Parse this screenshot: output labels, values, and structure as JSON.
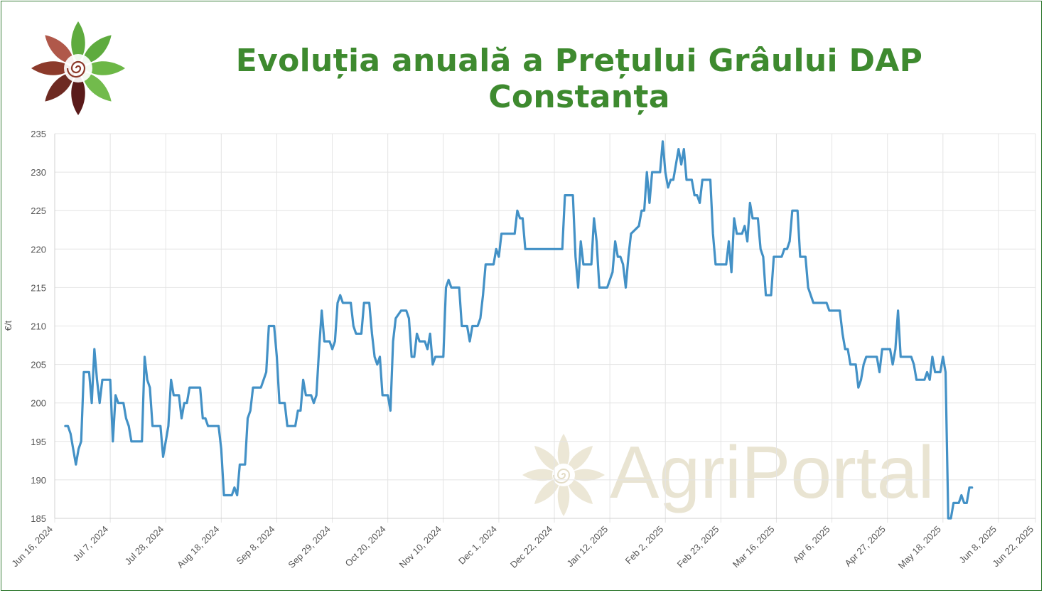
{
  "title": "Evoluția anuală a Prețului Grâului DAP Constanța",
  "brand": {
    "logo_icon": "agriportal-flower-logo",
    "watermark": "AgriPortal"
  },
  "colors": {
    "line": "#4391c6",
    "title": "#3e8a2f",
    "grid": "#e4e4e4",
    "watermark": "#e9e4d2"
  },
  "chart_data": {
    "type": "line",
    "title": "Evoluția anuală a Prețului Grâului DAP Constanța",
    "xlabel": "",
    "ylabel": "€/t",
    "ylim": [
      185,
      235
    ],
    "yticks": [
      "235",
      "230",
      "225",
      "220",
      "215",
      "210",
      "205",
      "200",
      "195",
      "190",
      "185"
    ],
    "xlim": [
      "2024-06-16",
      "2025-06-22"
    ],
    "xticks": [
      "Jun 16, 2024",
      "Jul 7, 2024",
      "Jul 28, 2024",
      "Aug 18, 2024",
      "Sep 8, 2024",
      "Sep 29, 2024",
      "Oct 20, 2024",
      "Nov 10, 2024",
      "Dec 1, 2024",
      "Dec 22, 2024",
      "Jan 12, 2025",
      "Feb 2, 2025",
      "Feb 23, 2025",
      "Mar 16, 2025",
      "Apr 6, 2025",
      "Apr 27, 2025",
      "May 18, 2025",
      "Jun 8, 2025",
      "Jun 22, 2025"
    ],
    "grid": true,
    "series": [
      {
        "name": "",
        "points": [
          [
            "2024-06-20",
            197
          ],
          [
            "2024-06-21",
            197
          ],
          [
            "2024-06-22",
            196
          ],
          [
            "2024-06-23",
            194
          ],
          [
            "2024-06-24",
            192
          ],
          [
            "2024-06-25",
            194
          ],
          [
            "2024-06-26",
            195
          ],
          [
            "2024-06-27",
            204
          ],
          [
            "2024-06-28",
            204
          ],
          [
            "2024-06-29",
            204
          ],
          [
            "2024-06-30",
            200
          ],
          [
            "2024-07-01",
            207
          ],
          [
            "2024-07-02",
            203
          ],
          [
            "2024-07-03",
            200
          ],
          [
            "2024-07-04",
            203
          ],
          [
            "2024-07-05",
            203
          ],
          [
            "2024-07-07",
            203
          ],
          [
            "2024-07-08",
            195
          ],
          [
            "2024-07-09",
            201
          ],
          [
            "2024-07-10",
            200
          ],
          [
            "2024-07-12",
            200
          ],
          [
            "2024-07-13",
            198
          ],
          [
            "2024-07-14",
            197
          ],
          [
            "2024-07-15",
            195
          ],
          [
            "2024-07-18",
            195
          ],
          [
            "2024-07-19",
            195
          ],
          [
            "2024-07-20",
            206
          ],
          [
            "2024-07-21",
            203
          ],
          [
            "2024-07-22",
            202
          ],
          [
            "2024-07-23",
            197
          ],
          [
            "2024-07-25",
            197
          ],
          [
            "2024-07-26",
            197
          ],
          [
            "2024-07-27",
            193
          ],
          [
            "2024-07-29",
            197
          ],
          [
            "2024-07-30",
            203
          ],
          [
            "2024-07-31",
            201
          ],
          [
            "2024-08-02",
            201
          ],
          [
            "2024-08-03",
            198
          ],
          [
            "2024-08-04",
            200
          ],
          [
            "2024-08-05",
            200
          ],
          [
            "2024-08-06",
            202
          ],
          [
            "2024-08-09",
            202
          ],
          [
            "2024-08-10",
            202
          ],
          [
            "2024-08-11",
            198
          ],
          [
            "2024-08-12",
            198
          ],
          [
            "2024-08-13",
            197
          ],
          [
            "2024-08-16",
            197
          ],
          [
            "2024-08-17",
            197
          ],
          [
            "2024-08-18",
            194
          ],
          [
            "2024-08-19",
            188
          ],
          [
            "2024-08-22",
            188
          ],
          [
            "2024-08-23",
            189
          ],
          [
            "2024-08-24",
            188
          ],
          [
            "2024-08-25",
            192
          ],
          [
            "2024-08-27",
            192
          ],
          [
            "2024-08-28",
            198
          ],
          [
            "2024-08-29",
            199
          ],
          [
            "2024-08-30",
            202
          ],
          [
            "2024-09-02",
            202
          ],
          [
            "2024-09-03",
            203
          ],
          [
            "2024-09-04",
            204
          ],
          [
            "2024-09-05",
            210
          ],
          [
            "2024-09-07",
            210
          ],
          [
            "2024-09-08",
            206
          ],
          [
            "2024-09-09",
            200
          ],
          [
            "2024-09-10",
            200
          ],
          [
            "2024-09-11",
            200
          ],
          [
            "2024-09-12",
            197
          ],
          [
            "2024-09-15",
            197
          ],
          [
            "2024-09-16",
            199
          ],
          [
            "2024-09-17",
            199
          ],
          [
            "2024-09-18",
            203
          ],
          [
            "2024-09-19",
            201
          ],
          [
            "2024-09-21",
            201
          ],
          [
            "2024-09-22",
            200
          ],
          [
            "2024-09-23",
            201
          ],
          [
            "2024-09-24",
            207
          ],
          [
            "2024-09-25",
            212
          ],
          [
            "2024-09-26",
            208
          ],
          [
            "2024-09-28",
            208
          ],
          [
            "2024-09-29",
            207
          ],
          [
            "2024-09-30",
            208
          ],
          [
            "2024-10-01",
            213
          ],
          [
            "2024-10-02",
            214
          ],
          [
            "2024-10-03",
            213
          ],
          [
            "2024-10-06",
            213
          ],
          [
            "2024-10-07",
            210
          ],
          [
            "2024-10-08",
            209
          ],
          [
            "2024-10-10",
            209
          ],
          [
            "2024-10-11",
            213
          ],
          [
            "2024-10-13",
            213
          ],
          [
            "2024-10-14",
            209
          ],
          [
            "2024-10-15",
            206
          ],
          [
            "2024-10-16",
            205
          ],
          [
            "2024-10-17",
            206
          ],
          [
            "2024-10-18",
            201
          ],
          [
            "2024-10-20",
            201
          ],
          [
            "2024-10-21",
            199
          ],
          [
            "2024-10-22",
            208
          ],
          [
            "2024-10-23",
            211
          ],
          [
            "2024-10-25",
            212
          ],
          [
            "2024-10-27",
            212
          ],
          [
            "2024-10-28",
            211
          ],
          [
            "2024-10-29",
            206
          ],
          [
            "2024-10-30",
            206
          ],
          [
            "2024-10-31",
            209
          ],
          [
            "2024-11-01",
            208
          ],
          [
            "2024-11-03",
            208
          ],
          [
            "2024-11-04",
            207
          ],
          [
            "2024-11-05",
            209
          ],
          [
            "2024-11-06",
            205
          ],
          [
            "2024-11-07",
            206
          ],
          [
            "2024-11-10",
            206
          ],
          [
            "2024-11-11",
            215
          ],
          [
            "2024-11-12",
            216
          ],
          [
            "2024-11-13",
            215
          ],
          [
            "2024-11-16",
            215
          ],
          [
            "2024-11-17",
            210
          ],
          [
            "2024-11-19",
            210
          ],
          [
            "2024-11-20",
            208
          ],
          [
            "2024-11-21",
            210
          ],
          [
            "2024-11-23",
            210
          ],
          [
            "2024-11-24",
            211
          ],
          [
            "2024-11-25",
            214
          ],
          [
            "2024-11-26",
            218
          ],
          [
            "2024-11-29",
            218
          ],
          [
            "2024-11-30",
            220
          ],
          [
            "2024-12-01",
            219
          ],
          [
            "2024-12-02",
            222
          ],
          [
            "2024-12-07",
            222
          ],
          [
            "2024-12-08",
            225
          ],
          [
            "2024-12-09",
            224
          ],
          [
            "2024-12-10",
            224
          ],
          [
            "2024-12-11",
            220
          ],
          [
            "2024-12-25",
            220
          ],
          [
            "2024-12-26",
            227
          ],
          [
            "2024-12-29",
            227
          ],
          [
            "2024-12-30",
            219
          ],
          [
            "2024-12-31",
            215
          ],
          [
            "2025-01-01",
            221
          ],
          [
            "2025-01-02",
            218
          ],
          [
            "2025-01-05",
            218
          ],
          [
            "2025-01-06",
            224
          ],
          [
            "2025-01-07",
            221
          ],
          [
            "2025-01-08",
            215
          ],
          [
            "2025-01-11",
            215
          ],
          [
            "2025-01-12",
            216
          ],
          [
            "2025-01-13",
            217
          ],
          [
            "2025-01-14",
            221
          ],
          [
            "2025-01-15",
            219
          ],
          [
            "2025-01-16",
            219
          ],
          [
            "2025-01-17",
            218
          ],
          [
            "2025-01-18",
            215
          ],
          [
            "2025-01-19",
            219
          ],
          [
            "2025-01-20",
            222
          ],
          [
            "2025-01-23",
            223
          ],
          [
            "2025-01-24",
            225
          ],
          [
            "2025-01-25",
            225
          ],
          [
            "2025-01-26",
            230
          ],
          [
            "2025-01-27",
            226
          ],
          [
            "2025-01-28",
            230
          ],
          [
            "2025-01-31",
            230
          ],
          [
            "2025-02-01",
            234
          ],
          [
            "2025-02-02",
            230
          ],
          [
            "2025-02-03",
            228
          ],
          [
            "2025-02-04",
            229
          ],
          [
            "2025-02-05",
            229
          ],
          [
            "2025-02-07",
            233
          ],
          [
            "2025-02-08",
            231
          ],
          [
            "2025-02-09",
            233
          ],
          [
            "2025-02-10",
            229
          ],
          [
            "2025-02-12",
            229
          ],
          [
            "2025-02-13",
            227
          ],
          [
            "2025-02-14",
            227
          ],
          [
            "2025-02-15",
            226
          ],
          [
            "2025-02-16",
            229
          ],
          [
            "2025-02-19",
            229
          ],
          [
            "2025-02-20",
            222
          ],
          [
            "2025-02-21",
            218
          ],
          [
            "2025-02-25",
            218
          ],
          [
            "2025-02-26",
            221
          ],
          [
            "2025-02-27",
            217
          ],
          [
            "2025-02-28",
            224
          ],
          [
            "2025-03-01",
            222
          ],
          [
            "2025-03-03",
            222
          ],
          [
            "2025-03-04",
            223
          ],
          [
            "2025-03-05",
            221
          ],
          [
            "2025-03-06",
            226
          ],
          [
            "2025-03-07",
            224
          ],
          [
            "2025-03-09",
            224
          ],
          [
            "2025-03-10",
            220
          ],
          [
            "2025-03-11",
            219
          ],
          [
            "2025-03-12",
            214
          ],
          [
            "2025-03-14",
            214
          ],
          [
            "2025-03-15",
            219
          ],
          [
            "2025-03-18",
            219
          ],
          [
            "2025-03-19",
            220
          ],
          [
            "2025-03-20",
            220
          ],
          [
            "2025-03-21",
            221
          ],
          [
            "2025-03-22",
            225
          ],
          [
            "2025-03-24",
            225
          ],
          [
            "2025-03-25",
            219
          ],
          [
            "2025-03-27",
            219
          ],
          [
            "2025-03-28",
            215
          ],
          [
            "2025-03-29",
            214
          ],
          [
            "2025-03-30",
            213
          ],
          [
            "2025-04-04",
            213
          ],
          [
            "2025-04-05",
            212
          ],
          [
            "2025-04-09",
            212
          ],
          [
            "2025-04-10",
            209
          ],
          [
            "2025-04-11",
            207
          ],
          [
            "2025-04-12",
            207
          ],
          [
            "2025-04-13",
            205
          ],
          [
            "2025-04-15",
            205
          ],
          [
            "2025-04-16",
            202
          ],
          [
            "2025-04-17",
            203
          ],
          [
            "2025-04-18",
            205
          ],
          [
            "2025-04-19",
            206
          ],
          [
            "2025-04-23",
            206
          ],
          [
            "2025-04-24",
            204
          ],
          [
            "2025-04-25",
            207
          ],
          [
            "2025-04-28",
            207
          ],
          [
            "2025-04-29",
            205
          ],
          [
            "2025-04-30",
            207
          ],
          [
            "2025-05-01",
            212
          ],
          [
            "2025-05-02",
            206
          ],
          [
            "2025-05-06",
            206
          ],
          [
            "2025-05-07",
            205
          ],
          [
            "2025-05-08",
            203
          ],
          [
            "2025-05-11",
            203
          ],
          [
            "2025-05-12",
            204
          ],
          [
            "2025-05-13",
            203
          ],
          [
            "2025-05-14",
            206
          ],
          [
            "2025-05-15",
            204
          ],
          [
            "2025-05-17",
            204
          ],
          [
            "2025-05-18",
            206
          ],
          [
            "2025-05-19",
            204
          ],
          [
            "2025-05-20",
            185
          ],
          [
            "2025-05-21",
            185
          ],
          [
            "2025-05-22",
            187
          ],
          [
            "2025-05-24",
            187
          ],
          [
            "2025-05-25",
            188
          ],
          [
            "2025-05-26",
            187
          ],
          [
            "2025-05-27",
            187
          ],
          [
            "2025-05-28",
            189
          ],
          [
            "2025-05-29",
            189
          ]
        ]
      }
    ]
  }
}
